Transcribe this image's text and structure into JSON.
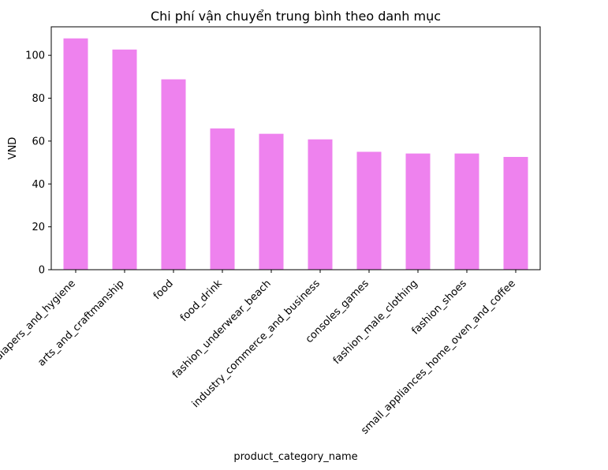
{
  "chart_data": {
    "type": "bar",
    "title": "Chi phí vận chuyển trung bình theo danh mục",
    "xlabel": "product_category_name",
    "ylabel": "VND",
    "categories": [
      "diapers_and_hygiene",
      "arts_and_craftmanship",
      "food",
      "food_drink",
      "fashion_underwear_beach",
      "industry_commerce_and_business",
      "consoles_games",
      "fashion_male_clothing",
      "fashion_shoes",
      "small_appliances_home_oven_and_coffee"
    ],
    "values": [
      107.9,
      102.7,
      88.8,
      65.9,
      63.4,
      60.8,
      55.0,
      54.2,
      54.2,
      52.6
    ],
    "ylim": [
      0,
      113.3
    ],
    "yticks": [
      0,
      20,
      40,
      60,
      80,
      100
    ],
    "grid": false,
    "legend": "none",
    "bar_color": "#ee82ee"
  }
}
